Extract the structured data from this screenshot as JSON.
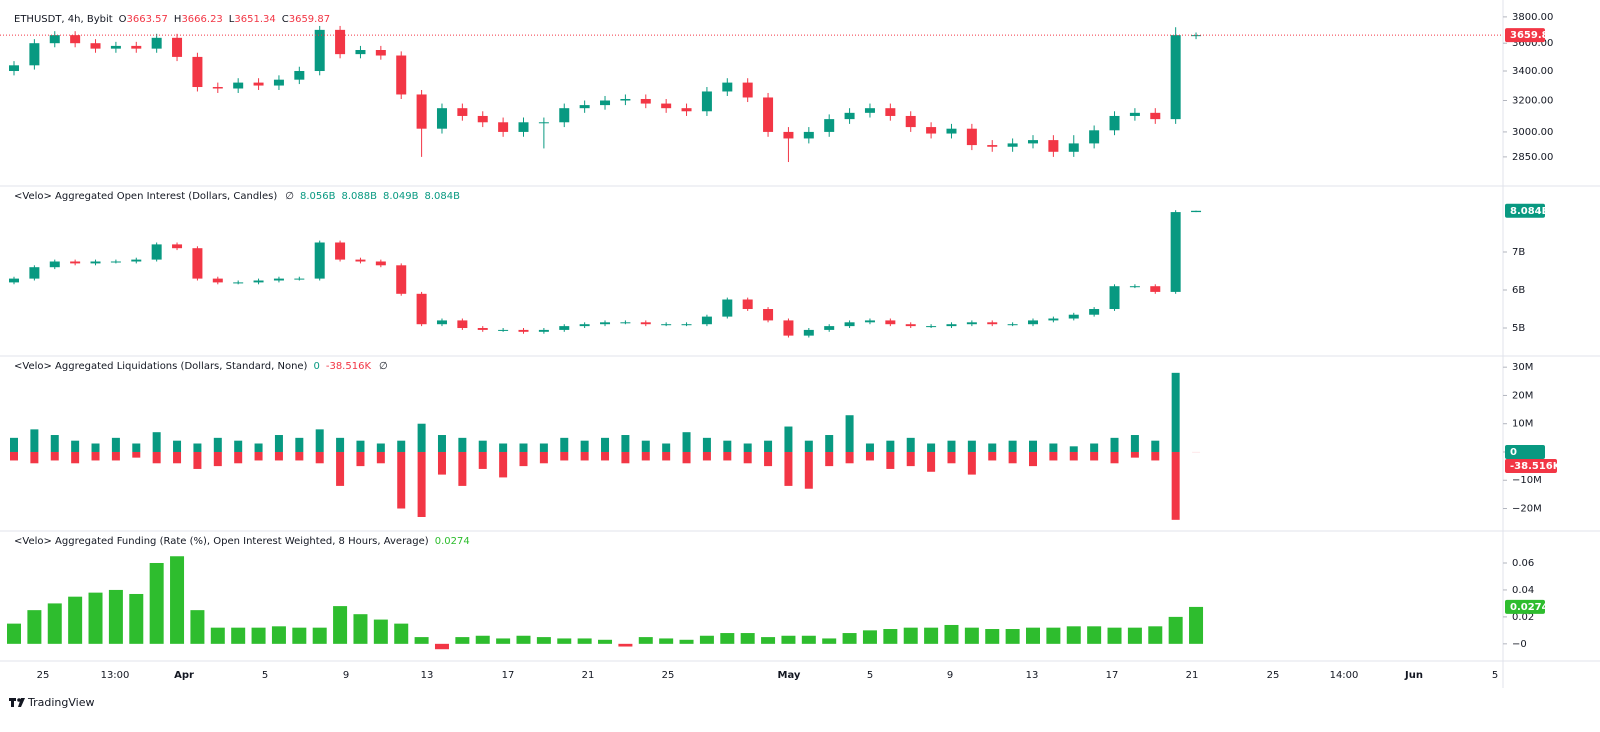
{
  "chart_data": [
    {
      "type": "candlestick",
      "title": "ETHUSDT, 4h, Bybit",
      "legend": [
        {
          "name": "O",
          "value": 3663.57,
          "color": "#f23645"
        },
        {
          "name": "H",
          "value": 3666.23,
          "color": "#f23645"
        },
        {
          "name": "L",
          "value": 3651.34,
          "color": "#f23645"
        },
        {
          "name": "C",
          "value": 3659.87,
          "color": "#f23645"
        }
      ],
      "log": true,
      "ylim": [
        2690,
        3870
      ],
      "yticks": [
        {
          "value": 3800,
          "label": "3800.00"
        },
        {
          "value": 3600,
          "label": "3600.00"
        },
        {
          "value": 3400,
          "label": "3400.00"
        },
        {
          "value": 3200,
          "label": "3200.00"
        },
        {
          "value": 3000,
          "label": "3000.00"
        },
        {
          "value": 2850,
          "label": "2850.00"
        }
      ],
      "up_color": "#089981",
      "down_color": "#f23645",
      "open": [
        3400,
        3440,
        3600,
        3660,
        3600,
        3560,
        3580,
        3560,
        3640,
        3500,
        3290,
        3280,
        3320,
        3300,
        3340,
        3400,
        3700,
        3520,
        3550,
        3510,
        3240,
        3020,
        3150,
        3100,
        3060,
        3000,
        3060,
        3060,
        3150,
        3170,
        3200,
        3210,
        3180,
        3150,
        3130,
        3260,
        3320,
        3220,
        3000,
        2960,
        3000,
        3080,
        3120,
        3150,
        3100,
        3030,
        2990,
        3020,
        2920,
        2910,
        2930,
        2950,
        2880,
        2930,
        3010,
        3100,
        3120,
        3080,
        3660
      ],
      "high": [
        3470,
        3630,
        3690,
        3690,
        3630,
        3610,
        3610,
        3670,
        3670,
        3530,
        3320,
        3350,
        3350,
        3370,
        3430,
        3730,
        3730,
        3580,
        3580,
        3540,
        3270,
        3180,
        3180,
        3130,
        3090,
        3090,
        3090,
        3180,
        3200,
        3230,
        3240,
        3240,
        3210,
        3180,
        3290,
        3350,
        3350,
        3250,
        3030,
        3030,
        3110,
        3150,
        3180,
        3180,
        3130,
        3060,
        3050,
        3050,
        2950,
        2960,
        2980,
        2980,
        2980,
        3040,
        3130,
        3150,
        3150,
        3720,
        3680
      ],
      "low": [
        3370,
        3410,
        3570,
        3570,
        3530,
        3530,
        3530,
        3530,
        3470,
        3260,
        3250,
        3250,
        3270,
        3270,
        3310,
        3370,
        3490,
        3490,
        3480,
        3210,
        2850,
        2990,
        3070,
        3030,
        2970,
        2970,
        2900,
        3030,
        3120,
        3140,
        3170,
        3150,
        3120,
        3100,
        3100,
        3230,
        3190,
        2970,
        2820,
        2930,
        2970,
        3050,
        3090,
        3070,
        3000,
        2960,
        2960,
        2890,
        2880,
        2880,
        2900,
        2850,
        2850,
        2900,
        2980,
        3070,
        3050,
        3050,
        3630
      ],
      "close": [
        3440,
        3600,
        3660,
        3600,
        3560,
        3580,
        3560,
        3640,
        3500,
        3290,
        3280,
        3320,
        3300,
        3340,
        3400,
        3700,
        3520,
        3550,
        3510,
        3240,
        3020,
        3150,
        3100,
        3060,
        3000,
        3060,
        3060,
        3150,
        3170,
        3200,
        3210,
        3180,
        3150,
        3130,
        3260,
        3320,
        3220,
        3000,
        2960,
        3000,
        3080,
        3120,
        3150,
        3100,
        3030,
        2990,
        3020,
        2920,
        2910,
        2930,
        2950,
        2880,
        2930,
        3010,
        3100,
        3120,
        3080,
        3660,
        3660
      ]
    },
    {
      "type": "candlestick",
      "title": "<Velo> Aggregated Open Interest (Dollars, Candles)",
      "status": "∅",
      "legend": [
        {
          "value": 8.056,
          "label": "8.056B",
          "color": "#089981"
        },
        {
          "value": 8.088,
          "label": "8.088B",
          "color": "#089981"
        },
        {
          "value": 8.049,
          "label": "8.049B",
          "color": "#089981"
        },
        {
          "value": 8.084,
          "label": "8.084B",
          "color": "#089981"
        }
      ],
      "ylim": [
        4.29,
        8.71
      ],
      "yticks": [
        {
          "value": 7,
          "label": "7B"
        },
        {
          "value": 6,
          "label": "6B"
        },
        {
          "value": 5,
          "label": "5B"
        }
      ],
      "up_color": "#089981",
      "down_color": "#f23645",
      "open": [
        6.2,
        6.3,
        6.6,
        6.75,
        6.7,
        6.75,
        6.75,
        6.8,
        7.2,
        7.1,
        6.3,
        6.2,
        6.2,
        6.25,
        6.3,
        6.3,
        7.25,
        6.8,
        6.75,
        6.65,
        5.9,
        5.1,
        5.2,
        5.0,
        4.95,
        4.95,
        4.9,
        4.95,
        5.05,
        5.1,
        5.15,
        5.15,
        5.1,
        5.1,
        5.1,
        5.3,
        5.75,
        5.5,
        5.2,
        4.8,
        4.95,
        5.05,
        5.15,
        5.2,
        5.1,
        5.05,
        5.05,
        5.1,
        5.15,
        5.1,
        5.1,
        5.2,
        5.25,
        5.35,
        5.5,
        6.1,
        6.1,
        5.95,
        8.05
      ],
      "high": [
        6.35,
        6.65,
        6.8,
        6.8,
        6.8,
        6.8,
        6.85,
        7.25,
        7.25,
        7.15,
        6.35,
        6.25,
        6.3,
        6.35,
        6.35,
        7.3,
        7.3,
        6.85,
        6.8,
        6.7,
        5.95,
        5.25,
        5.25,
        5.05,
        5.0,
        5.0,
        5.0,
        5.1,
        5.15,
        5.2,
        5.2,
        5.2,
        5.15,
        5.15,
        5.35,
        5.8,
        5.8,
        5.55,
        5.25,
        5.0,
        5.1,
        5.2,
        5.25,
        5.25,
        5.15,
        5.1,
        5.15,
        5.2,
        5.2,
        5.15,
        5.25,
        5.3,
        5.4,
        5.55,
        6.15,
        6.15,
        6.15,
        8.1,
        8.088
      ],
      "low": [
        6.15,
        6.25,
        6.55,
        6.65,
        6.65,
        6.7,
        6.7,
        6.75,
        7.05,
        6.25,
        6.15,
        6.15,
        6.15,
        6.2,
        6.25,
        6.25,
        6.75,
        6.7,
        6.6,
        5.85,
        5.05,
        5.05,
        4.95,
        4.9,
        4.9,
        4.85,
        4.85,
        4.9,
        5.0,
        5.05,
        5.1,
        5.05,
        5.05,
        5.05,
        5.05,
        5.25,
        5.45,
        5.15,
        4.75,
        4.75,
        4.9,
        5.0,
        5.1,
        5.05,
        5.0,
        5.0,
        5.0,
        5.05,
        5.05,
        5.05,
        5.05,
        5.15,
        5.2,
        5.3,
        5.45,
        6.05,
        5.9,
        5.9,
        8.049
      ],
      "close": [
        6.3,
        6.6,
        6.75,
        6.7,
        6.75,
        6.75,
        6.8,
        7.2,
        7.1,
        6.3,
        6.2,
        6.2,
        6.25,
        6.3,
        6.3,
        7.25,
        6.8,
        6.75,
        6.65,
        5.9,
        5.1,
        5.2,
        5.0,
        4.95,
        4.95,
        4.9,
        4.95,
        5.05,
        5.1,
        5.15,
        5.15,
        5.1,
        5.1,
        5.1,
        5.3,
        5.75,
        5.5,
        5.2,
        4.8,
        4.95,
        5.05,
        5.15,
        5.2,
        5.1,
        5.05,
        5.05,
        5.1,
        5.15,
        5.1,
        5.1,
        5.2,
        5.25,
        5.35,
        5.5,
        6.1,
        6.1,
        5.95,
        8.05,
        8.084
      ]
    },
    {
      "type": "bar",
      "title": "<Velo> Aggregated Liquidations (Dollars, Standard, None)",
      "status": "∅",
      "legend": [
        {
          "value": 0,
          "color": "#089981"
        },
        {
          "value": -0.038516,
          "label": "-38.516K",
          "color": "#f23645"
        }
      ],
      "ylim": [
        -27.6,
        33.6
      ],
      "yticks": [
        {
          "value": 30,
          "label": "30M"
        },
        {
          "value": 20,
          "label": "20M"
        },
        {
          "value": 10,
          "label": "10M"
        },
        0,
        {
          "value": -10,
          "label": "−10M"
        },
        {
          "value": -20,
          "label": "−20M"
        }
      ],
      "series": [
        {
          "color": "#089981",
          "values": [
            5,
            8,
            6,
            4,
            3,
            5,
            3,
            7,
            4,
            3,
            5,
            4,
            3,
            6,
            5,
            8,
            5,
            4,
            3,
            4,
            10,
            6,
            5,
            4,
            3,
            3,
            3,
            5,
            4,
            5,
            6,
            4,
            3,
            7,
            5,
            4,
            3,
            4,
            9,
            4,
            6,
            13,
            3,
            4,
            5,
            3,
            4,
            4,
            3,
            4,
            4,
            3,
            2,
            3,
            5,
            6,
            4,
            28,
            0
          ]
        },
        {
          "color": "#f23645",
          "values": [
            -3,
            -4,
            -3,
            -4,
            -3,
            -3,
            -2,
            -4,
            -4,
            -6,
            -5,
            -4,
            -3,
            -3,
            -3,
            -4,
            -12,
            -5,
            -4,
            -20,
            -23,
            -8,
            -12,
            -6,
            -9,
            -5,
            -4,
            -3,
            -3,
            -3,
            -4,
            -3,
            -3,
            -4,
            -3,
            -3,
            -4,
            -5,
            -12,
            -13,
            -5,
            -4,
            -3,
            -6,
            -5,
            -7,
            -4,
            -8,
            -3,
            -4,
            -5,
            -3,
            -3,
            -3,
            -4,
            -2,
            -3,
            -24,
            -0.038516
          ]
        }
      ]
    },
    {
      "type": "bar",
      "title": "<Velo> Aggregated Funding (Rate (%), Open Interest Weighted, 8 Hours, Average)",
      "legend": [
        {
          "value": 0.0274,
          "color": "#2ebd2e"
        }
      ],
      "ylim": [
        -0.012,
        0.083
      ],
      "yticks": [
        0.06,
        0.04,
        0.02,
        {
          "value": 0,
          "label": "−0"
        }
      ],
      "series": [
        {
          "color": "#2ebd2e",
          "negative_color": "#f23645",
          "values": [
            0.015,
            0.025,
            0.03,
            0.035,
            0.038,
            0.04,
            0.037,
            0.06,
            0.065,
            0.025,
            0.012,
            0.012,
            0.012,
            0.013,
            0.012,
            0.012,
            0.028,
            0.022,
            0.018,
            0.015,
            0.005,
            -0.004,
            0.005,
            0.006,
            0.004,
            0.006,
            0.005,
            0.004,
            0.004,
            0.003,
            -0.002,
            0.005,
            0.004,
            0.003,
            0.006,
            0.008,
            0.008,
            0.005,
            0.006,
            0.006,
            0.004,
            0.008,
            0.01,
            0.011,
            0.012,
            0.012,
            0.014,
            0.012,
            0.011,
            0.011,
            0.012,
            0.012,
            0.013,
            0.013,
            0.012,
            0.012,
            0.013,
            0.02,
            0.0274
          ]
        }
      ]
    }
  ],
  "x_axis": [
    "25",
    "13:00",
    "Apr",
    "5",
    "9",
    "13",
    "17",
    "21",
    "25",
    "May",
    "5",
    "9",
    "13",
    "17",
    "21",
    "25",
    "14:00",
    "Jun",
    "5"
  ],
  "brand": "TradingView"
}
